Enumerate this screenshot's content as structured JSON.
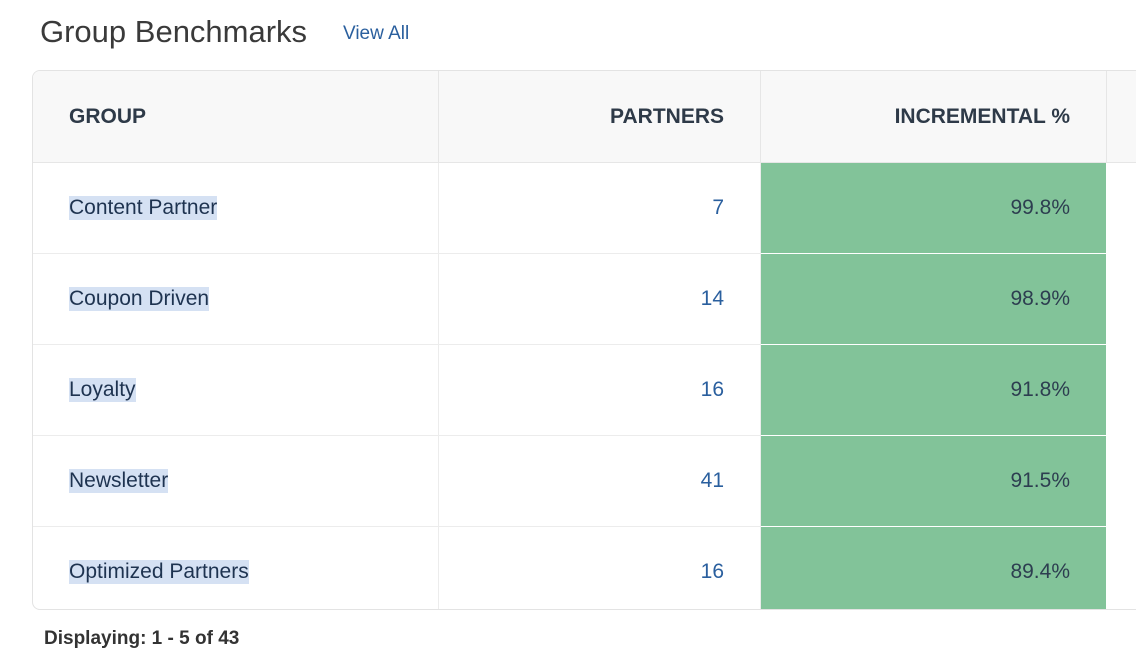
{
  "header": {
    "title": "Group Benchmarks",
    "link": "View All"
  },
  "table": {
    "columns": [
      "GROUP",
      "PARTNERS",
      "INCREMENTAL %"
    ],
    "rows": [
      [
        "Content Partner",
        "7",
        "99.8%"
      ],
      [
        "Coupon Driven",
        "14",
        "98.9%"
      ],
      [
        "Loyalty",
        "16",
        "91.8%"
      ],
      [
        "Newsletter",
        "41",
        "91.5%"
      ],
      [
        "Optimized Partners",
        "16",
        "89.4%"
      ]
    ]
  },
  "footer": {
    "text": "Displaying: 1 - 5 of 43"
  }
}
